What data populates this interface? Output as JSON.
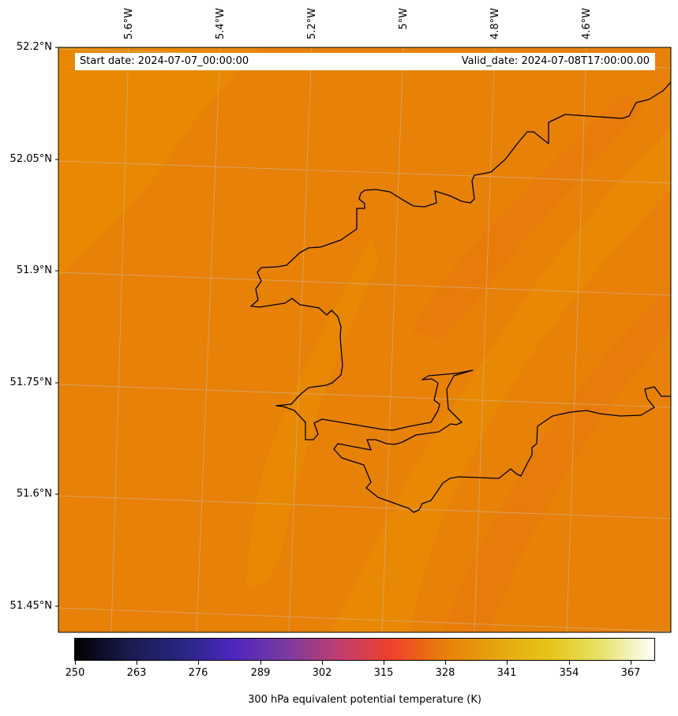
{
  "header": {
    "start_date": "Start date: 2024-07-07_00:00:00",
    "valid_date": "Valid_date: 2024-07-08T17:00:00.00"
  },
  "map": {
    "lat_labels": [
      "52.2°N",
      "52.05°N",
      "51.9°N",
      "51.75°N",
      "51.6°N",
      "51.45°N"
    ],
    "lon_labels": [
      "5.6°W",
      "5.4°W",
      "5.2°W",
      "5°W",
      "4.8°W",
      "4.6°W"
    ],
    "field_colors": {
      "base": "#e88107",
      "lighter": "#e98a03",
      "darker": "#e77b0b"
    },
    "coastline_color": "#000000",
    "gridline_color": "#c8c8c8"
  },
  "colorbar": {
    "title": "300 hPa equivalent potential temperature (K)",
    "min": 250,
    "max": 372,
    "ticks": [
      "250",
      "263",
      "276",
      "289",
      "302",
      "315",
      "328",
      "341",
      "354",
      "367"
    ],
    "colormap": "CMRmap",
    "stops": [
      "#000000",
      "#1a1a4d",
      "#262680",
      "#4d26bf",
      "#7a3aa0",
      "#bf3e70",
      "#f0402a",
      "#e87e0a",
      "#e5a50d",
      "#e6c517",
      "#e6e36a",
      "#ffffff"
    ]
  }
}
